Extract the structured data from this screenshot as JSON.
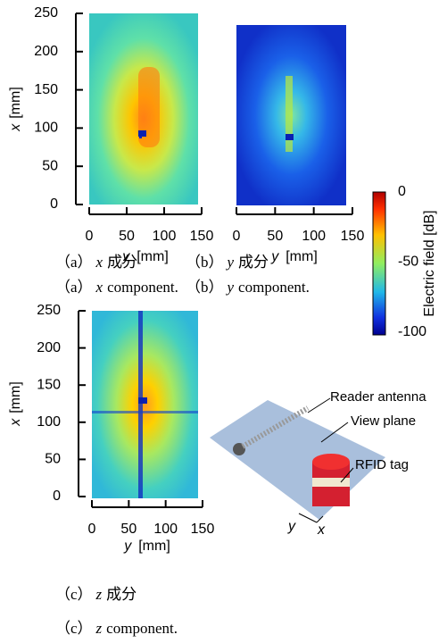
{
  "panels": [
    {
      "y_label": "x",
      "x_label": "y",
      "unit": "[mm]",
      "yticks": [
        250,
        200,
        150,
        100,
        50,
        0
      ],
      "xticks": [
        0,
        50,
        100,
        150
      ],
      "caption_jp": {
        "tag": "（a）",
        "var": "x",
        "text": "成分"
      },
      "caption_en": {
        "tag": "（a）",
        "var": "x",
        "text": "component."
      }
    },
    {
      "x_label": "y",
      "unit": "[mm]",
      "xticks": [
        0,
        50,
        100,
        150
      ],
      "caption_jp": {
        "tag": "（b）",
        "var": "y",
        "text": "成分"
      },
      "caption_en": {
        "tag": "（b）",
        "var": "y",
        "text": "component."
      }
    },
    {
      "y_label": "x",
      "x_label": "y",
      "unit": "[mm]",
      "yticks": [
        250,
        200,
        150,
        100,
        50,
        0
      ],
      "xticks": [
        0,
        50,
        100,
        150
      ],
      "caption_jp": {
        "tag": "（c）",
        "var": "z",
        "text": "成分"
      },
      "caption_en": {
        "tag": "（c）",
        "var": "z",
        "text": "component."
      }
    }
  ],
  "colorbar": {
    "label": "Electric field [dB]",
    "ticks": [
      0,
      -50,
      -100
    ]
  },
  "diagram": {
    "reader_antenna": "Reader antenna",
    "view_plane": "View plane",
    "rfid_tag": "RFID tag",
    "axis_y": "y",
    "axis_x": "x"
  }
}
